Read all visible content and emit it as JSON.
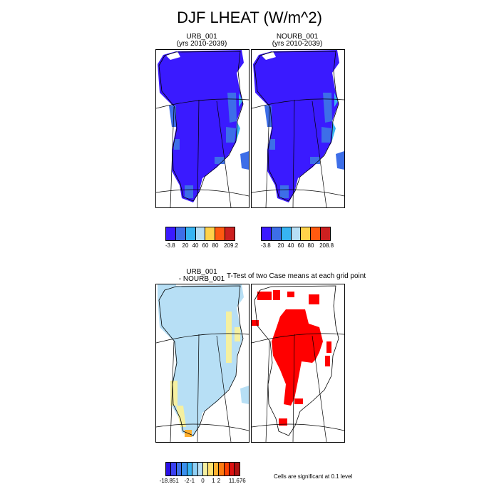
{
  "title": "DJF LHEAT (W/m^2)",
  "panels": {
    "urb": {
      "title_line1": "URB_001",
      "title_line2": "(yrs 2010-2039)"
    },
    "nourb": {
      "title_line1": "NOURB_001",
      "title_line2": "(yrs 2010-2039)"
    },
    "diff": {
      "title_line1": "URB_001",
      "title_line2": "- NOURB_001"
    },
    "ttest": {
      "title": "T-Test of two Case means at each grid point"
    }
  },
  "colorbars": {
    "urb": {
      "colors": [
        "#3a1aff",
        "#3d6ee8",
        "#37b4f2",
        "#b7dff5",
        "#ffd24a",
        "#ff5a10",
        "#cc2020"
      ],
      "labels": [
        "-3.8",
        "20",
        "40",
        "60",
        "80",
        "209.2"
      ]
    },
    "nourb": {
      "colors": [
        "#3a1aff",
        "#3d6ee8",
        "#37b4f2",
        "#b7dff5",
        "#ffd24a",
        "#ff5a10",
        "#cc2020"
      ],
      "labels": [
        "-3.8",
        "20",
        "40",
        "60",
        "80",
        "208.8"
      ]
    },
    "diff": {
      "colors": [
        "#2a10e6",
        "#3a40f0",
        "#3d6ee8",
        "#3a90ee",
        "#37b4f2",
        "#8fd0f6",
        "#b7dff5",
        "#f5f0a0",
        "#ffe070",
        "#ffb030",
        "#ff7a10",
        "#ff4000",
        "#dd1010",
        "#b01010"
      ],
      "labels": [
        "-18.851",
        "-2",
        "-1",
        "0",
        "1",
        "2",
        "11.676"
      ]
    }
  },
  "note": "Cells are significant at 0.1 level",
  "legend_colors": {
    "ice_blue": "#3a1aff",
    "edge_blue": "#3d6ee8",
    "light_blue": "#b7dff5",
    "yellow": "#f5f0a0",
    "significant_red": "#ff0000"
  }
}
